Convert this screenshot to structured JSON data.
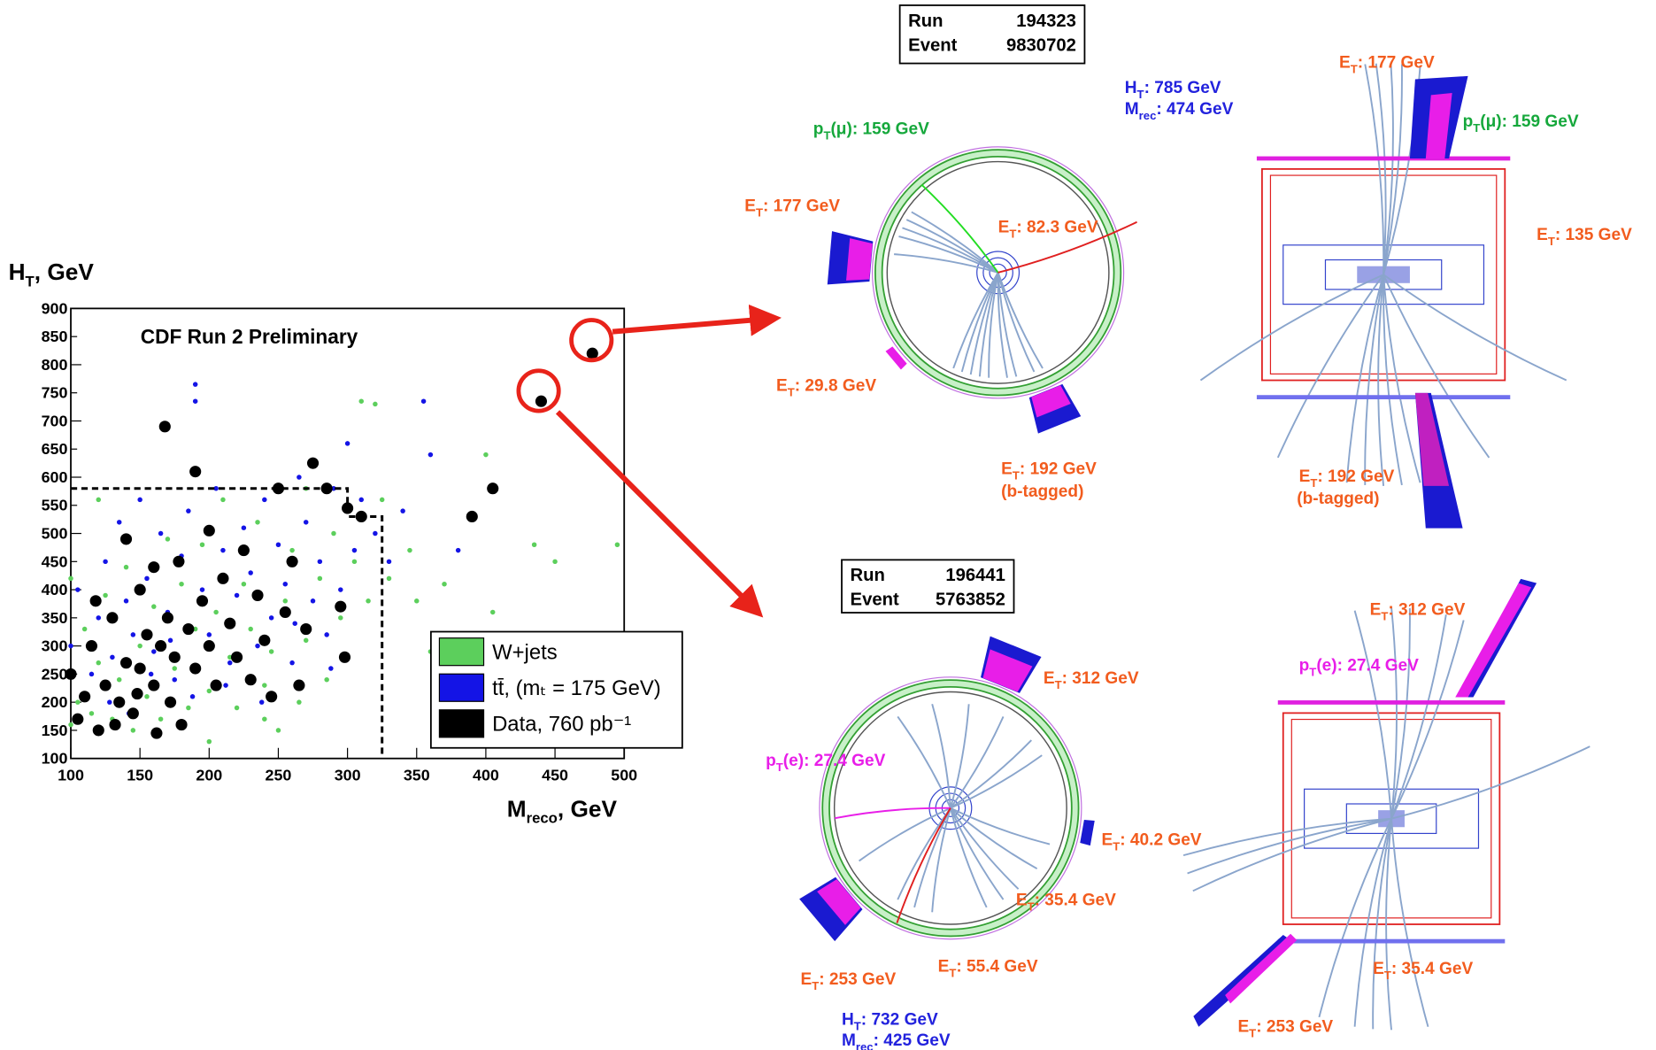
{
  "chart_data": {
    "type": "scatter",
    "title": "CDF Run 2 Preliminary",
    "y_label": [
      "H",
      "T",
      ", GeV"
    ],
    "x_label": [
      "M",
      "reco",
      ", GeV"
    ],
    "xlim": [
      100,
      500
    ],
    "ylim": [
      100,
      900
    ],
    "xticks": [
      100,
      150,
      200,
      250,
      300,
      350,
      400,
      450,
      500
    ],
    "yticks": [
      100,
      150,
      200,
      250,
      300,
      350,
      400,
      450,
      500,
      550,
      600,
      650,
      700,
      750,
      800,
      850,
      900
    ],
    "cut_region": {
      "x": [
        100,
        300,
        300,
        325,
        325
      ],
      "y": [
        580,
        580,
        530,
        530,
        100
      ]
    },
    "series": [
      {
        "name": "W+jets",
        "color": "#5ccf5c",
        "size": 2.3,
        "x": [
          100,
          100,
          105,
          110,
          115,
          120,
          125,
          130,
          135,
          140,
          145,
          150,
          155,
          160,
          165,
          170,
          175,
          180,
          185,
          190,
          195,
          200,
          205,
          210,
          215,
          220,
          225,
          230,
          235,
          240,
          245,
          250,
          255,
          260,
          265,
          270,
          280,
          285,
          290,
          295,
          305,
          310,
          315,
          320,
          325,
          330,
          345,
          350,
          360,
          370,
          380,
          400,
          405,
          435,
          450,
          495,
          120,
          200,
          240,
          270
        ],
        "y": [
          420,
          160,
          200,
          330,
          180,
          270,
          390,
          170,
          240,
          440,
          150,
          300,
          210,
          370,
          170,
          490,
          260,
          410,
          190,
          330,
          480,
          220,
          360,
          560,
          280,
          190,
          410,
          330,
          520,
          230,
          290,
          150,
          380,
          470,
          200,
          310,
          420,
          240,
          500,
          350,
          450,
          735,
          380,
          730,
          560,
          420,
          470,
          380,
          290,
          410,
          260,
          640,
          360,
          480,
          450,
          480,
          560,
          130,
          170,
          580
        ]
      },
      {
        "name": "tt̄, (mₜ = 175 GeV)",
        "color": "#1414e6",
        "size": 2.3,
        "x": [
          100,
          105,
          115,
          120,
          125,
          130,
          135,
          140,
          145,
          150,
          155,
          160,
          165,
          170,
          175,
          180,
          185,
          190,
          190,
          195,
          200,
          205,
          210,
          215,
          220,
          225,
          230,
          235,
          240,
          245,
          250,
          255,
          260,
          265,
          270,
          275,
          280,
          285,
          290,
          295,
          300,
          305,
          310,
          320,
          330,
          340,
          355,
          360,
          380,
          128,
          142,
          158,
          172,
          188,
          212,
          238,
          262,
          288
        ],
        "y": [
          300,
          400,
          250,
          350,
          450,
          280,
          520,
          380,
          320,
          560,
          420,
          290,
          500,
          360,
          240,
          460,
          540,
          765,
          735,
          400,
          320,
          580,
          470,
          270,
          390,
          510,
          430,
          300,
          560,
          350,
          480,
          410,
          270,
          600,
          520,
          380,
          450,
          320,
          580,
          400,
          660,
          470,
          560,
          500,
          450,
          540,
          735,
          640,
          470,
          200,
          180,
          250,
          310,
          210,
          230,
          200,
          340,
          260
        ]
      },
      {
        "name": "Data, 760 pb⁻¹",
        "color": "#000000",
        "size": 5.5,
        "x": [
          100,
          105,
          110,
          115,
          120,
          125,
          130,
          135,
          140,
          140,
          145,
          150,
          150,
          155,
          160,
          160,
          165,
          168,
          170,
          172,
          175,
          178,
          180,
          185,
          190,
          190,
          195,
          200,
          200,
          205,
          210,
          215,
          220,
          225,
          230,
          235,
          240,
          245,
          250,
          255,
          260,
          265,
          275,
          270,
          285,
          295,
          298,
          300,
          310,
          390,
          405,
          440,
          477,
          118,
          132,
          148,
          162
        ],
        "y": [
          250,
          170,
          210,
          300,
          150,
          230,
          350,
          200,
          490,
          270,
          180,
          400,
          260,
          320,
          230,
          440,
          300,
          690,
          350,
          200,
          280,
          450,
          160,
          330,
          610,
          260,
          380,
          505,
          300,
          230,
          420,
          340,
          280,
          470,
          240,
          390,
          310,
          210,
          580,
          360,
          450,
          230,
          625,
          330,
          580,
          370,
          280,
          545,
          530,
          530,
          580,
          735,
          820,
          380,
          160,
          215,
          145
        ]
      }
    ]
  },
  "events": [
    {
      "run_label": "Run",
      "run": 194323,
      "event_label": "Event",
      "event": 9830702,
      "labels": [
        {
          "parts": [
            "p",
            "T",
            "(μ): 159 GeV"
          ],
          "color": "#16a83c"
        },
        {
          "parts": [
            "E",
            "T",
            ":  177 GeV"
          ],
          "color": "#f25c1e"
        },
        {
          "parts": [
            "E",
            "T",
            ":  82.3 GeV"
          ],
          "color": "#f25c1e"
        },
        {
          "parts": [
            "E",
            "T",
            ":  29.8 GeV"
          ],
          "color": "#f25c1e"
        },
        {
          "parts": [
            "E",
            "T",
            ":  192 GeV"
          ],
          "color": "#f25c1e"
        },
        {
          "parts": [
            "(b-tagged)"
          ],
          "color": "#f25c1e"
        },
        {
          "parts": [
            "H",
            "T",
            ":    785 GeV"
          ],
          "color": "#2222dd"
        },
        {
          "parts": [
            "M",
            "rec",
            ": 474 GeV"
          ],
          "color": "#2222dd"
        },
        {
          "parts": [
            "E",
            "T",
            ":  177 GeV"
          ],
          "color": "#f25c1e"
        },
        {
          "parts": [
            "p",
            "T",
            "(μ): 159 GeV"
          ],
          "color": "#16a83c"
        },
        {
          "parts": [
            "E",
            "T",
            ":  135 GeV"
          ],
          "color": "#f25c1e"
        },
        {
          "parts": [
            "E",
            "T",
            ":  192 GeV"
          ],
          "color": "#f25c1e"
        },
        {
          "parts": [
            "(b-tagged)"
          ],
          "color": "#f25c1e"
        }
      ]
    },
    {
      "run_label": "Run",
      "run": 196441,
      "event_label": "Event",
      "event": 5763852,
      "labels": [
        {
          "parts": [
            "E",
            "T",
            ":  312 GeV"
          ],
          "color": "#f25c1e"
        },
        {
          "parts": [
            "p",
            "T",
            "(e): 27.4 GeV"
          ],
          "color": "#e81ee8"
        },
        {
          "parts": [
            "E",
            "T",
            ":  40.2 GeV"
          ],
          "color": "#f25c1e"
        },
        {
          "parts": [
            "E",
            "T",
            ":  35.4 GeV"
          ],
          "color": "#f25c1e"
        },
        {
          "parts": [
            "E",
            "T",
            ":  253 GeV"
          ],
          "color": "#f25c1e"
        },
        {
          "parts": [
            "E",
            "T",
            ":  55.4 GeV"
          ],
          "color": "#f25c1e"
        },
        {
          "parts": [
            "H",
            "T",
            ":    732 GeV"
          ],
          "color": "#2222dd"
        },
        {
          "parts": [
            "M",
            "rec",
            ": 425 GeV"
          ],
          "color": "#2222dd"
        },
        {
          "parts": [
            "E",
            "T",
            ":  312 GeV"
          ],
          "color": "#f25c1e"
        },
        {
          "parts": [
            "p",
            "T",
            "(e): 27.4 GeV"
          ],
          "color": "#e81ee8"
        },
        {
          "parts": [
            "E",
            "T",
            ":  35.4 GeV"
          ],
          "color": "#f25c1e"
        },
        {
          "parts": [
            "E",
            "T",
            ":  253 GeV"
          ],
          "color": "#f25c1e"
        }
      ]
    }
  ]
}
